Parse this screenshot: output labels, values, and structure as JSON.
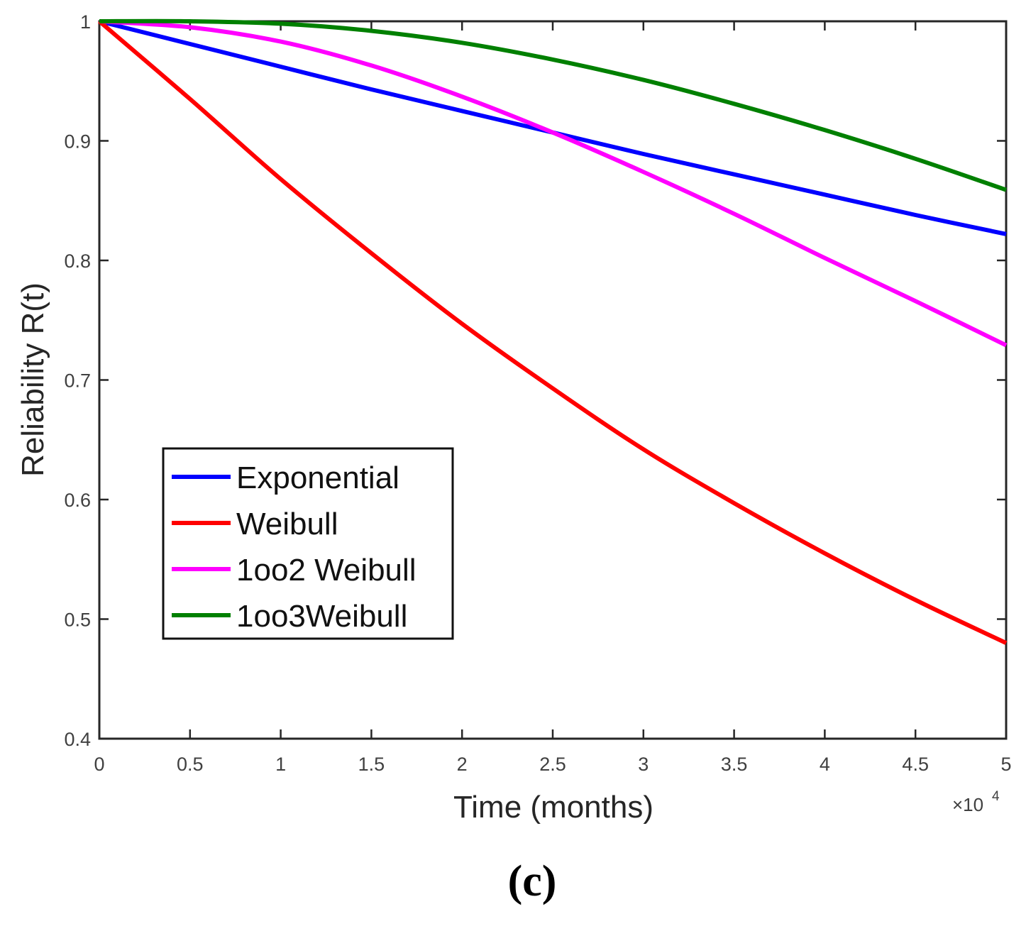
{
  "chart_data": {
    "type": "line",
    "title": "",
    "xlabel": "Time (months)",
    "ylabel": "Reliability R(t)",
    "x_scale_label": "×10",
    "x_scale_exponent": "4",
    "xlim": [
      0,
      5
    ],
    "ylim": [
      0.4,
      1
    ],
    "xticks": [
      0,
      0.5,
      1,
      1.5,
      2,
      2.5,
      3,
      3.5,
      4,
      4.5,
      5
    ],
    "xtick_labels": [
      "0",
      "0.5",
      "1",
      "1.5",
      "2",
      "2.5",
      "3",
      "3.5",
      "4",
      "4.5",
      "5"
    ],
    "yticks": [
      0.4,
      0.5,
      0.6,
      0.7,
      0.8,
      0.9,
      1
    ],
    "ytick_labels": [
      "0.4",
      "0.5",
      "0.6",
      "0.7",
      "0.8",
      "0.9",
      "1"
    ],
    "grid": false,
    "legend_position": "lower-left",
    "x": [
      0,
      0.5,
      1,
      1.5,
      2,
      2.5,
      3,
      3.5,
      4,
      4.5,
      5
    ],
    "series": [
      {
        "name": "Exponential",
        "color": "#0000ff",
        "values": [
          1.0,
          0.981,
          0.962,
          0.943,
          0.925,
          0.907,
          0.889,
          0.872,
          0.855,
          0.838,
          0.822
        ]
      },
      {
        "name": "Weibull",
        "color": "#ff0000",
        "values": [
          1.0,
          0.935,
          0.868,
          0.806,
          0.747,
          0.693,
          0.642,
          0.597,
          0.555,
          0.516,
          0.48
        ]
      },
      {
        "name": "1oo2 Weibull",
        "color": "#ff00ff",
        "values": [
          1.0,
          0.995,
          0.983,
          0.963,
          0.937,
          0.907,
          0.874,
          0.839,
          0.802,
          0.766,
          0.729
        ]
      },
      {
        "name": "1oo3Weibull",
        "color": "#008000",
        "values": [
          1.0,
          1.0,
          0.998,
          0.992,
          0.982,
          0.968,
          0.951,
          0.931,
          0.909,
          0.885,
          0.859
        ]
      }
    ]
  },
  "panel_label": "(c)"
}
